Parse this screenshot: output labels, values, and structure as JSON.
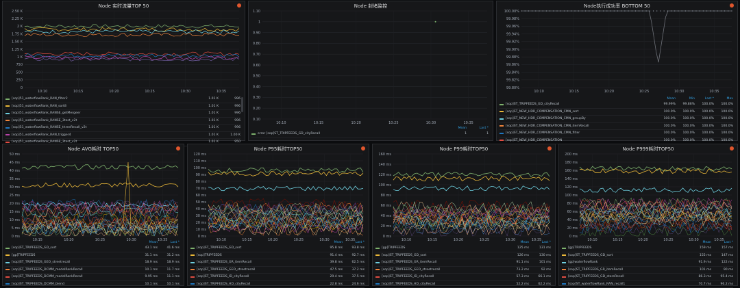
{
  "panels": [
    {
      "id": "p0",
      "title": "Node 实时流量TOP 50",
      "y_ticks": [
        "2.50 K",
        "2.25 K",
        "2 K",
        "1.75 K",
        "1.50 K",
        "1.25 K",
        "1 K",
        "750",
        "500",
        "250",
        "0"
      ],
      "x_ticks": [
        "10:10",
        "10:15",
        "10:20",
        "10:25",
        "10:30",
        "10:35"
      ],
      "legend_headers": [],
      "legend": [
        {
          "name": "[sop]51_waterflowRank_RAN_filter2",
          "color": "#7eb26d",
          "vals": [
            "1.01 K",
            "996"
          ]
        },
        {
          "name": "[sop]51_waterflowRank_RAN_sort8",
          "color": "#eab839",
          "vals": [
            "1.01 K",
            "996"
          ]
        },
        {
          "name": "[sop]51_waterflowRank_RANSE_getMergeer",
          "color": "#6ed0e0",
          "vals": [
            "1.01 K",
            "996"
          ]
        },
        {
          "name": "[sop]51_waterflowRank_RANSE_3test_v2t",
          "color": "#ef843c",
          "vals": [
            "1.01 K",
            "996"
          ]
        },
        {
          "name": "[sop]51_waterflowRank_RANSE_threeRecall_v2t",
          "color": "#1f78c1",
          "vals": [
            "1.01 K",
            "996"
          ]
        },
        {
          "name": "[sop]51_waterflowRank_RAN_trigger4",
          "color": "#ba43a9",
          "vals": [
            "1.01 K",
            "1.00 K"
          ]
        },
        {
          "name": "[sop]51_waterflowRank_RANSE_3test_v2t",
          "color": "#e24d42",
          "vals": [
            "1.01 K",
            "950"
          ]
        }
      ]
    },
    {
      "id": "p1",
      "title": "Node 封堵监控",
      "y_ticks": [
        "1.10",
        "1",
        "0.90",
        "0.80",
        "0.70",
        "0.60",
        "0.50",
        "0.40",
        "0.30",
        "0.20",
        "0.10"
      ],
      "x_ticks": [
        "10:10",
        "10:15",
        "10:20",
        "10:25",
        "10:30",
        "10:35"
      ],
      "legend_headers": [
        "Mean",
        "Last *"
      ],
      "legend": [
        {
          "name": "error [sop]ST_TRIPFEEDS_GD_cityRecall",
          "color": "#7eb26d",
          "vals": [
            "1",
            "1"
          ]
        }
      ]
    },
    {
      "id": "p2",
      "title": "Node执行成功率 BOTTOM 50",
      "y_ticks": [
        "100.00%",
        "99.98%",
        "99.96%",
        "99.94%",
        "99.92%",
        "99.90%",
        "99.88%",
        "99.86%",
        "99.84%",
        "99.82%",
        "99.80%"
      ],
      "x_ticks": [
        "10:10",
        "10:15",
        "10:20",
        "10:25",
        "10:30",
        "10:35"
      ],
      "legend_headers": [
        "Mean",
        "Min",
        "Last *",
        "Max"
      ],
      "legend": [
        {
          "name": "[sop]ST_TRIPFEEDS_GD_cityRecall",
          "color": "#7eb26d",
          "vals": [
            "99.99%",
            "99.86%",
            "100.0%",
            "100.0%"
          ]
        },
        {
          "name": "[sop]ST_NEW_HDR_COMPENSATION_CMN_sort",
          "color": "#eab839",
          "vals": [
            "100.0%",
            "100.0%",
            "100.0%",
            "100.0%"
          ]
        },
        {
          "name": "[sop]ST_NEW_HDR_COMPENSATION_CMN_groupBy",
          "color": "#6ed0e0",
          "vals": [
            "100.0%",
            "100.0%",
            "100.0%",
            "100.0%"
          ]
        },
        {
          "name": "[sop]ST_NEW_HDR_COMPENSATION_CMN_itemRecall",
          "color": "#ef843c",
          "vals": [
            "100.0%",
            "100.0%",
            "100.0%",
            "100.0%"
          ]
        },
        {
          "name": "[sop]ST_NEW_HDR_COMPENSATION_CMN_filter",
          "color": "#1f78c1",
          "vals": [
            "100.0%",
            "100.0%",
            "100.0%",
            "100.0%"
          ]
        },
        {
          "name": "[sop]ST_NEW_HDR_COMPENSATION",
          "color": "#e24d42",
          "vals": [
            "100.0%",
            "100.0%",
            "100.0%",
            "100.0%"
          ]
        }
      ]
    },
    {
      "id": "p3",
      "title": "Node AVG耗时 TOP50",
      "y_ticks": [
        "50 ms",
        "45 ms",
        "40 ms",
        "35 ms",
        "30 ms",
        "25 ms",
        "20 ms",
        "15 ms",
        "10 ms",
        "5 ms",
        "0 ms"
      ],
      "x_ticks": [
        "10:15",
        "10:20",
        "10:25",
        "10:30",
        "10:35"
      ],
      "legend_headers": [
        "Mean",
        "Last *"
      ],
      "legend": [
        {
          "name": "[sop]ST_TRIPFEEDS_GD_sort",
          "color": "#7eb26d",
          "vals": [
            "43.1 ms",
            "41.6 ms"
          ]
        },
        {
          "name": "[gp]TRIPFEEDS",
          "color": "#eab839",
          "vals": [
            "31.1 ms",
            "31.2 ms"
          ]
        },
        {
          "name": "[sop]ST_TRIPFEEDS_GEO_streetrecall",
          "color": "#6ed0e0",
          "vals": [
            "18.9 ms",
            "18.9 ms"
          ]
        },
        {
          "name": "[sop]ST_TRIPFEEDS_DCMM_modelRankRecall",
          "color": "#ef843c",
          "vals": [
            "10.1 ms",
            "11.7 ms"
          ]
        },
        {
          "name": "[sop]ST_TRIPFEEDS_DCMM_modelRankRecall",
          "color": "#e24d42",
          "vals": [
            "9.95 ms",
            "11.1 ms"
          ]
        },
        {
          "name": "[sop]ST_TRIPFEEDS_DCMM_blend",
          "color": "#1f78c1",
          "vals": [
            "10.1 ms",
            "10.1 ms"
          ]
        }
      ]
    },
    {
      "id": "p4",
      "title": "Node P95耗时TOP50",
      "y_ticks": [
        "120 ms",
        "110 ms",
        "100 ms",
        "90 ms",
        "80 ms",
        "70 ms",
        "60 ms",
        "50 ms",
        "40 ms",
        "30 ms",
        "20 ms",
        "10 ms",
        "0 ms"
      ],
      "x_ticks": [
        "10:10",
        "10:15",
        "10:20",
        "10:25",
        "10:30",
        "10:35"
      ],
      "legend_headers": [
        "Mean",
        "Last *"
      ],
      "legend": [
        {
          "name": "[sop]ST_TRIPFEEDS_GD_sort",
          "color": "#7eb26d",
          "vals": [
            "95.8 ms",
            "93.8 ms"
          ]
        },
        {
          "name": "[sop]TRIPFEEDS",
          "color": "#eab839",
          "vals": [
            "91.4 ms",
            "92.7 ms"
          ]
        },
        {
          "name": "[sop]ST_TRIPFEEDS_GR_itemRecall",
          "color": "#6ed0e0",
          "vals": [
            "39.8 ms",
            "62.5 ms"
          ]
        },
        {
          "name": "[sop]ST_TRIPFEEDS_GEO_streetrecall",
          "color": "#ef843c",
          "vals": [
            "47.5 ms",
            "37.2 ms"
          ]
        },
        {
          "name": "[sop]ST_TRIPFEEDS_ID_cityRecall",
          "color": "#e24d42",
          "vals": [
            "29.4 ms",
            "37.5 ms"
          ]
        },
        {
          "name": "[sop]ST_TRIPFEEDS_HD_cityRecall",
          "color": "#1f78c1",
          "vals": [
            "22.8 ms",
            "24.6 ms"
          ]
        }
      ]
    },
    {
      "id": "p5",
      "title": "Node P99耗时TOP50",
      "y_ticks": [
        "160 ms",
        "140 ms",
        "120 ms",
        "100 ms",
        "80 ms",
        "60 ms",
        "40 ms",
        "20 ms",
        "0 ms"
      ],
      "x_ticks": [
        "10:10",
        "10:15",
        "10:20",
        "10:25",
        "10:30",
        "10:35"
      ],
      "legend_headers": [
        "Mean",
        "Last *"
      ],
      "legend": [
        {
          "name": "[gp]TRIPFEEDS",
          "color": "#7eb26d",
          "vals": [
            "125 ms",
            "131 ms"
          ]
        },
        {
          "name": "[sop]ST_TRIPFEEDS_GD_sort",
          "color": "#eab839",
          "vals": [
            "126 ms",
            "130 ms"
          ]
        },
        {
          "name": "[sop]ST_TRIPFEEDS_GR_itemRecall",
          "color": "#6ed0e0",
          "vals": [
            "91.1 ms",
            "101 ms"
          ]
        },
        {
          "name": "[sop]ST_TRIPFEEDS_GEO_streetrecall",
          "color": "#ef843c",
          "vals": [
            "73.2 ms",
            "92 ms"
          ]
        },
        {
          "name": "[sop]ST_TRIPFEEDS_ID_cityRecall",
          "color": "#e24d42",
          "vals": [
            "57.3 ms",
            "66.1 ms"
          ]
        },
        {
          "name": "[sop]ST_TRIPFEEDS_HD_cityRecall",
          "color": "#1f78c1",
          "vals": [
            "52.2 ms",
            "62.2 ms"
          ]
        }
      ]
    },
    {
      "id": "p6",
      "title": "Node P999耗时TOP50",
      "y_ticks": [
        "200 ms",
        "180 ms",
        "160 ms",
        "140 ms",
        "120 ms",
        "100 ms",
        "80 ms",
        "60 ms",
        "40 ms",
        "20 ms",
        "0 ms"
      ],
      "x_ticks": [
        "10:10",
        "10:15",
        "10:20",
        "10:25",
        "10:30",
        "10:35"
      ],
      "legend_headers": [
        "Mean",
        "Last *"
      ],
      "legend": [
        {
          "name": "[gp]TRIPFEEDS",
          "color": "#7eb26d",
          "vals": [
            "159 ms",
            "157 ms"
          ]
        },
        {
          "name": "[sop]ST_TRIPFEEDS_GD_sort",
          "color": "#eab839",
          "vals": [
            "155 ms",
            "147 ms"
          ]
        },
        {
          "name": "[gp]waterflowRank",
          "color": "#6ed0e0",
          "vals": [
            "91.9 ms",
            "122 ms"
          ]
        },
        {
          "name": "[sop]ST_TRIPFEEDS_GR_itemRecall",
          "color": "#ef843c",
          "vals": [
            "101 ms",
            "90 ms"
          ]
        },
        {
          "name": "[sop]ST_TRIPFEEDS_GD_storeRecall",
          "color": "#e24d42",
          "vals": [
            "86.3 ms",
            "95.4 ms"
          ]
        },
        {
          "name": "[sop]ST_waterflowRank_RAN_recall1",
          "color": "#1f78c1",
          "vals": [
            "70.7 ms",
            "96.2 ms"
          ]
        }
      ]
    }
  ]
}
